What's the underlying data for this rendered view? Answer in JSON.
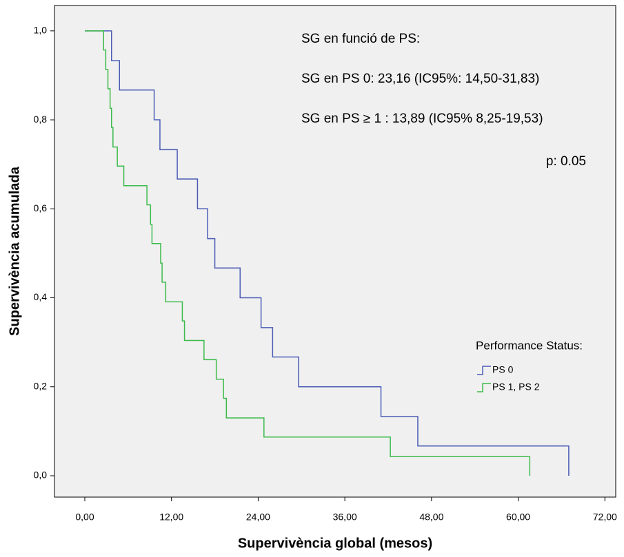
{
  "chart_data": {
    "type": "step",
    "x_label": "Supervivència global (mesos)",
    "y_label": "Supervivència acumulada",
    "annotations": [
      "SG en funció de PS:",
      "SG en PS 0: 23,16 (IC95%: 14,50-31,83)",
      "SG en PS ≥ 1 : 13,89 (IC95% 8,25-19,53)",
      "p: 0.05"
    ],
    "legend_title": "Performance Status:",
    "series": [
      {
        "name": "PS 0",
        "color": "#4a5cb5",
        "x": [
          0,
          3.7,
          4.8,
          9.6,
          10.4,
          12.8,
          15.6,
          17.0,
          18.0,
          21.5,
          24.4,
          26.0,
          29.6,
          41.0,
          46.1,
          67.0
        ],
        "values": [
          1,
          0.933,
          0.867,
          0.8,
          0.733,
          0.667,
          0.6,
          0.533,
          0.467,
          0.4,
          0.333,
          0.267,
          0.2,
          0.133,
          0.067,
          0
        ]
      },
      {
        "name": "PS 1, PS 2",
        "color": "#3cba4a",
        "x": [
          0,
          2.6,
          2.9,
          3.2,
          3.5,
          3.7,
          3.9,
          4.5,
          5.4,
          8.6,
          9.1,
          9.3,
          10.5,
          10.7,
          11.2,
          13.5,
          13.8,
          16.5,
          18.2,
          19.2,
          19.6,
          24.8,
          42.3,
          61.6
        ],
        "values": [
          1,
          0.957,
          0.913,
          0.87,
          0.826,
          0.783,
          0.739,
          0.696,
          0.652,
          0.609,
          0.565,
          0.522,
          0.478,
          0.435,
          0.391,
          0.348,
          0.304,
          0.261,
          0.217,
          0.174,
          0.13,
          0.087,
          0.043,
          0
        ]
      }
    ],
    "xlim": [
      -4.2,
      73.5
    ],
    "ylim": [
      -0.048,
      1.057
    ],
    "xticks": [
      {
        "value": 0,
        "label": "0,00"
      },
      {
        "value": 12,
        "label": "12,00"
      },
      {
        "value": 24,
        "label": "24,00"
      },
      {
        "value": 36,
        "label": "36,00"
      },
      {
        "value": 48,
        "label": "48,00"
      },
      {
        "value": 60,
        "label": "60,00"
      },
      {
        "value": 72,
        "label": "72,00"
      }
    ],
    "yticks": [
      {
        "value": 0,
        "label": "0,0"
      },
      {
        "value": 0.2,
        "label": "0,2"
      },
      {
        "value": 0.4,
        "label": "0,4"
      },
      {
        "value": 0.6,
        "label": "0,6"
      },
      {
        "value": 0.8,
        "label": "0,8"
      },
      {
        "value": 1,
        "label": "1,0"
      }
    ],
    "plot_background": "#f0f0f0",
    "grid": false
  }
}
